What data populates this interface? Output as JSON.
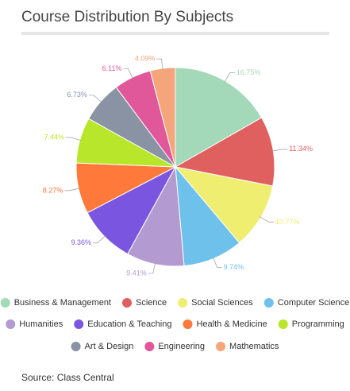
{
  "chart_data": {
    "type": "pie",
    "title": "Course Distribution By Subjects",
    "categories": [
      "Business & Management",
      "Science",
      "Social Sciences",
      "Computer Science",
      "Humanities",
      "Education & Teaching",
      "Health & Medicine",
      "Programming",
      "Art & Design",
      "Engineering",
      "Mathematics"
    ],
    "values": [
      16.75,
      11.34,
      10.77,
      9.74,
      9.41,
      9.36,
      8.27,
      7.44,
      6.73,
      6.11,
      4.09
    ],
    "value_labels": [
      "16.75%",
      "11.34%",
      "10.77%",
      "9.74%",
      "9.41%",
      "9.36%",
      "8.27%",
      "7.44%",
      "6.73%",
      "6.11%",
      "4.09%"
    ],
    "colors": [
      "#a3d9b8",
      "#e06060",
      "#f0ee70",
      "#6ec1ea",
      "#b39bd1",
      "#7a55e0",
      "#ff7a3a",
      "#b8e62a",
      "#8a93a3",
      "#e0579a",
      "#f4a57a"
    ],
    "legend": "bottom",
    "source": "Source: Class Central"
  }
}
